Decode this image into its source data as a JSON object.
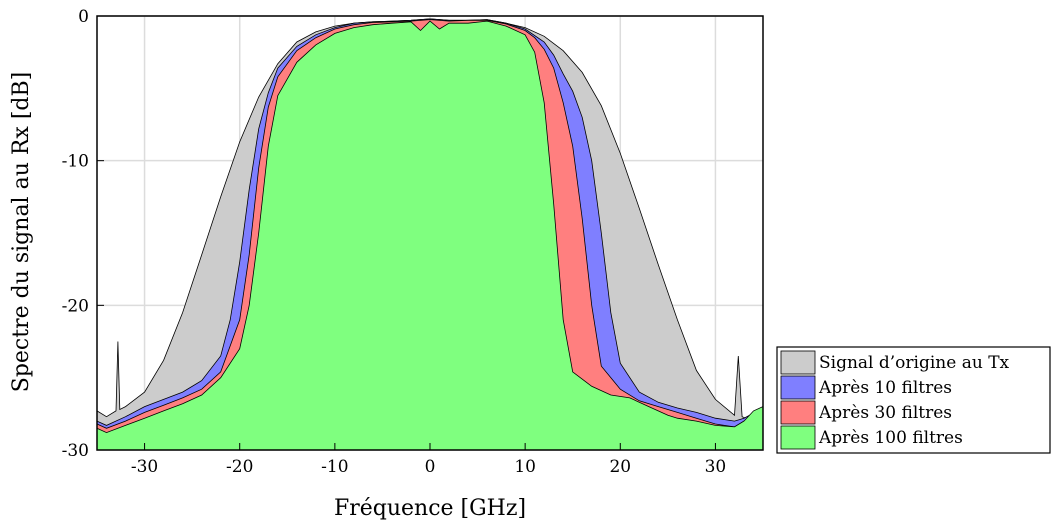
{
  "chart_data": {
    "type": "area",
    "title": "",
    "xlabel": "Fréquence [GHz]",
    "ylabel": "Spectre du signal au Rx [dB]",
    "xlim": [
      -35,
      35
    ],
    "ylim": [
      -30,
      0
    ],
    "x_ticks": [
      -30,
      -20,
      -10,
      0,
      10,
      20,
      30
    ],
    "y_ticks": [
      0,
      -10,
      -20,
      -30
    ],
    "x_tick_labels": [
      "-30",
      "-20",
      "-10",
      "0",
      "10",
      "20",
      "30"
    ],
    "y_tick_labels": [
      "0",
      "-10",
      "-20",
      "-30"
    ],
    "grid": true,
    "legend_position": "bottom-right-outside",
    "series": [
      {
        "name": "Signal d’origine au Tx",
        "color": "#cccccc",
        "points": [
          [
            -35,
            -27.3
          ],
          [
            -34,
            -27.7
          ],
          [
            -33,
            -27.3
          ],
          [
            -32.8,
            -22.5
          ],
          [
            -32.6,
            -27.2
          ],
          [
            -32,
            -27.0
          ],
          [
            -30,
            -26.0
          ],
          [
            -28,
            -23.8
          ],
          [
            -26,
            -20.5
          ],
          [
            -24,
            -16.5
          ],
          [
            -22,
            -12.5
          ],
          [
            -20,
            -8.7
          ],
          [
            -18,
            -5.6
          ],
          [
            -16,
            -3.3
          ],
          [
            -14,
            -1.8
          ],
          [
            -12,
            -1.1
          ],
          [
            -10,
            -0.7
          ],
          [
            -8,
            -0.5
          ],
          [
            -6,
            -0.4
          ],
          [
            -4,
            -0.35
          ],
          [
            -2,
            -0.3
          ],
          [
            0,
            -0.2
          ],
          [
            2,
            -0.3
          ],
          [
            4,
            -0.3
          ],
          [
            6,
            -0.25
          ],
          [
            8,
            -0.5
          ],
          [
            10,
            -0.8
          ],
          [
            12,
            -1.4
          ],
          [
            14,
            -2.4
          ],
          [
            16,
            -3.9
          ],
          [
            18,
            -6.2
          ],
          [
            20,
            -9.5
          ],
          [
            22,
            -13.3
          ],
          [
            24,
            -17.2
          ],
          [
            26,
            -21.0
          ],
          [
            28,
            -24.5
          ],
          [
            30,
            -26.5
          ],
          [
            32,
            -27.6
          ],
          [
            32.4,
            -23.5
          ],
          [
            32.8,
            -27.7
          ],
          [
            34,
            -28.0
          ],
          [
            35,
            -27.0
          ]
        ]
      },
      {
        "name": "Après 10 filtres",
        "color": "#7f7fff",
        "points": [
          [
            -35,
            -28.0
          ],
          [
            -34,
            -28.3
          ],
          [
            -32,
            -27.7
          ],
          [
            -30,
            -27.0
          ],
          [
            -28,
            -26.5
          ],
          [
            -26,
            -26.0
          ],
          [
            -24,
            -25.2
          ],
          [
            -22,
            -23.5
          ],
          [
            -21,
            -21.0
          ],
          [
            -20,
            -17.0
          ],
          [
            -19,
            -12.0
          ],
          [
            -18,
            -7.8
          ],
          [
            -17,
            -5.3
          ],
          [
            -16,
            -3.6
          ],
          [
            -14,
            -2.1
          ],
          [
            -12,
            -1.3
          ],
          [
            -10,
            -0.8
          ],
          [
            -8,
            -0.5
          ],
          [
            -6,
            -0.4
          ],
          [
            -4,
            -0.35
          ],
          [
            -2,
            -0.3
          ],
          [
            0,
            -0.2
          ],
          [
            2,
            -0.3
          ],
          [
            4,
            -0.3
          ],
          [
            6,
            -0.25
          ],
          [
            8,
            -0.5
          ],
          [
            10,
            -0.9
          ],
          [
            12,
            -1.8
          ],
          [
            13,
            -2.7
          ],
          [
            14,
            -4.0
          ],
          [
            15,
            -5.2
          ],
          [
            16,
            -7.0
          ],
          [
            17,
            -10.0
          ],
          [
            18,
            -15.0
          ],
          [
            19,
            -20.5
          ],
          [
            20,
            -24.0
          ],
          [
            22,
            -26.0
          ],
          [
            24,
            -26.7
          ],
          [
            26,
            -27.1
          ],
          [
            28,
            -27.4
          ],
          [
            30,
            -27.8
          ],
          [
            32,
            -28.0
          ],
          [
            33,
            -27.8
          ],
          [
            35,
            -27.1
          ]
        ]
      },
      {
        "name": "Après 30 filtres",
        "color": "#ff7f7f",
        "points": [
          [
            -35,
            -28.2
          ],
          [
            -34,
            -28.5
          ],
          [
            -32,
            -28.0
          ],
          [
            -30,
            -27.4
          ],
          [
            -28,
            -26.9
          ],
          [
            -26,
            -26.4
          ],
          [
            -24,
            -25.8
          ],
          [
            -22,
            -24.6
          ],
          [
            -20,
            -21.0
          ],
          [
            -19,
            -16.5
          ],
          [
            -18,
            -10.5
          ],
          [
            -17,
            -6.3
          ],
          [
            -16,
            -4.2
          ],
          [
            -14,
            -2.4
          ],
          [
            -12,
            -1.5
          ],
          [
            -10,
            -0.9
          ],
          [
            -8,
            -0.6
          ],
          [
            -6,
            -0.45
          ],
          [
            -4,
            -0.4
          ],
          [
            -2,
            -0.35
          ],
          [
            0,
            -0.25
          ],
          [
            2,
            -0.35
          ],
          [
            4,
            -0.3
          ],
          [
            6,
            -0.3
          ],
          [
            8,
            -0.55
          ],
          [
            10,
            -1.0
          ],
          [
            11,
            -1.5
          ],
          [
            12,
            -2.3
          ],
          [
            13,
            -3.6
          ],
          [
            14,
            -6.0
          ],
          [
            15,
            -9.0
          ],
          [
            16,
            -14.0
          ],
          [
            17,
            -20.0
          ],
          [
            18,
            -24.2
          ],
          [
            20,
            -25.8
          ],
          [
            22,
            -26.6
          ],
          [
            24,
            -27.0
          ],
          [
            26,
            -27.4
          ],
          [
            28,
            -27.8
          ],
          [
            30,
            -28.2
          ],
          [
            32,
            -28.4
          ],
          [
            35,
            -27.2
          ]
        ]
      },
      {
        "name": "Après 100 filtres",
        "color": "#7fff7f",
        "points": [
          [
            -35,
            -28.5
          ],
          [
            -34,
            -28.8
          ],
          [
            -32,
            -28.3
          ],
          [
            -30,
            -27.8
          ],
          [
            -28,
            -27.3
          ],
          [
            -26,
            -26.8
          ],
          [
            -24,
            -26.2
          ],
          [
            -22,
            -25.0
          ],
          [
            -20,
            -23.0
          ],
          [
            -19,
            -20.0
          ],
          [
            -18,
            -15.0
          ],
          [
            -17,
            -9.0
          ],
          [
            -16,
            -5.5
          ],
          [
            -14,
            -3.2
          ],
          [
            -12,
            -2.0
          ],
          [
            -10,
            -1.2
          ],
          [
            -8,
            -0.8
          ],
          [
            -6,
            -0.6
          ],
          [
            -4,
            -0.5
          ],
          [
            -2,
            -0.4
          ],
          [
            -1,
            -1.0
          ],
          [
            0,
            -0.35
          ],
          [
            1,
            -0.9
          ],
          [
            2,
            -0.5
          ],
          [
            4,
            -0.5
          ],
          [
            6,
            -0.35
          ],
          [
            8,
            -0.7
          ],
          [
            10,
            -1.3
          ],
          [
            11,
            -2.5
          ],
          [
            12,
            -6.0
          ],
          [
            13,
            -13.0
          ],
          [
            14,
            -21.0
          ],
          [
            15,
            -24.6
          ],
          [
            17,
            -25.6
          ],
          [
            19,
            -26.2
          ],
          [
            21,
            -26.4
          ],
          [
            23,
            -27.0
          ],
          [
            25,
            -27.6
          ],
          [
            26,
            -27.8
          ],
          [
            28,
            -28.0
          ],
          [
            30,
            -28.3
          ],
          [
            32,
            -28.4
          ],
          [
            33,
            -28.0
          ],
          [
            34,
            -27.3
          ],
          [
            35,
            -27.0
          ]
        ]
      }
    ]
  }
}
